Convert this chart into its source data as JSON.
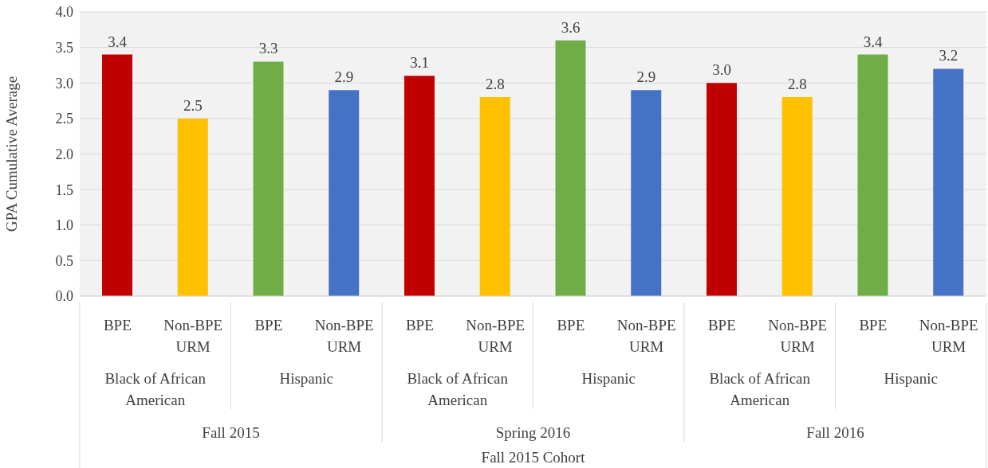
{
  "chart_data": {
    "type": "bar",
    "ylabel": "GPA Cumulative Average",
    "categories": [
      "BPE",
      "Non-BPE URM",
      "BPE",
      "Non-BPE URM",
      "BPE",
      "Non-BPE URM",
      "BPE",
      "Non-BPE URM",
      "BPE",
      "Non-BPE URM",
      "BPE",
      "Non-BPE URM"
    ],
    "values": [
      3.4,
      2.5,
      3.3,
      2.9,
      3.1,
      2.8,
      3.6,
      2.9,
      3.0,
      2.8,
      3.4,
      3.2
    ],
    "colors": [
      "#c00000",
      "#ffc000",
      "#70ad47",
      "#4472c4",
      "#c00000",
      "#ffc000",
      "#70ad47",
      "#4472c4",
      "#c00000",
      "#ffc000",
      "#70ad47",
      "#4472c4"
    ],
    "ylim": [
      0,
      4
    ],
    "yticks": [
      {
        "value": 0,
        "label": "0.0"
      },
      {
        "value": 0.5,
        "label": "0.5"
      },
      {
        "value": 1,
        "label": "1.0"
      },
      {
        "value": 1.5,
        "label": "1.5"
      },
      {
        "value": 2,
        "label": "2.0"
      },
      {
        "value": 2.5,
        "label": "2.5"
      },
      {
        "value": 3,
        "label": "3.0"
      },
      {
        "value": 3.5,
        "label": "3.5"
      },
      {
        "value": 4,
        "label": "4.0"
      }
    ],
    "grid": "y",
    "value_labels": [
      "3.4",
      "2.5",
      "3.3",
      "2.9",
      "3.1",
      "2.8",
      "3.6",
      "2.9",
      "3.0",
      "2.8",
      "3.4",
      "3.2"
    ],
    "annotations": [
      "Black of African American",
      "Hispanic",
      "Black of African American",
      "Hispanic",
      "Black of African American",
      "Hispanic",
      "Fall 2015",
      "Spring 2016",
      "Fall 2016",
      "Fall 2015 Cohort"
    ]
  }
}
